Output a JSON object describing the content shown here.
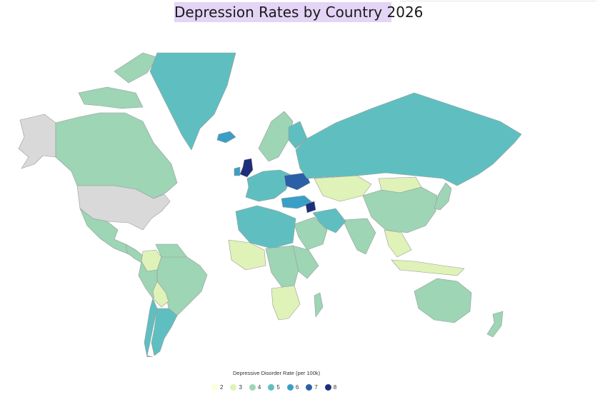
{
  "title": "Depression Rates by Country 2026",
  "legend": {
    "title": "Depressive Disorder Rate (per 100k)",
    "items": [
      {
        "label": "2",
        "color": "#ffffd6"
      },
      {
        "label": "3",
        "color": "#dff2b8"
      },
      {
        "label": "4",
        "color": "#9dd5b5"
      },
      {
        "label": "5",
        "color": "#5fbfc0"
      },
      {
        "label": "6",
        "color": "#3a9fc6"
      },
      {
        "label": "7",
        "color": "#2b5fa8"
      },
      {
        "label": "8",
        "color": "#1b2f7a"
      }
    ]
  },
  "no_data_color": "#d9d9d9",
  "regions": [
    {
      "name": "Alaska",
      "level": null
    },
    {
      "name": "Canada",
      "level": 4
    },
    {
      "name": "United States",
      "level": null
    },
    {
      "name": "Greenland",
      "level": 5
    },
    {
      "name": "Iceland",
      "level": 6
    },
    {
      "name": "Mexico",
      "level": 4
    },
    {
      "name": "Central America",
      "level": 4
    },
    {
      "name": "Colombia",
      "level": 3
    },
    {
      "name": "Venezuela",
      "level": 4
    },
    {
      "name": "Brazil",
      "level": 4
    },
    {
      "name": "Peru",
      "level": 4
    },
    {
      "name": "Bolivia",
      "level": 3
    },
    {
      "name": "Chile",
      "level": 5
    },
    {
      "name": "Argentina",
      "level": 5
    },
    {
      "name": "United Kingdom",
      "level": 8
    },
    {
      "name": "Ireland",
      "level": 6
    },
    {
      "name": "Scandinavia",
      "level": 4
    },
    {
      "name": "Finland",
      "level": 5
    },
    {
      "name": "Western Europe",
      "level": 5
    },
    {
      "name": "Ukraine",
      "level": 7
    },
    {
      "name": "Russia",
      "level": 5
    },
    {
      "name": "Kazakhstan",
      "level": 3
    },
    {
      "name": "Mongolia",
      "level": 3
    },
    {
      "name": "China",
      "level": 4
    },
    {
      "name": "Japan",
      "level": 4
    },
    {
      "name": "India",
      "level": 4
    },
    {
      "name": "Turkey",
      "level": 6
    },
    {
      "name": "Syria",
      "level": 8
    },
    {
      "name": "Iran",
      "level": 5
    },
    {
      "name": "Saudi Arabia",
      "level": 4
    },
    {
      "name": "North Africa",
      "level": 5
    },
    {
      "name": "West Africa",
      "level": 3
    },
    {
      "name": "Central Africa",
      "level": 4
    },
    {
      "name": "East Africa",
      "level": 4
    },
    {
      "name": "Southern Africa",
      "level": 3
    },
    {
      "name": "Madagascar",
      "level": 4
    },
    {
      "name": "Southeast Asia",
      "level": 3
    },
    {
      "name": "Indonesia",
      "level": 3
    },
    {
      "name": "Australia",
      "level": 4
    },
    {
      "name": "New Zealand",
      "level": 4
    }
  ]
}
